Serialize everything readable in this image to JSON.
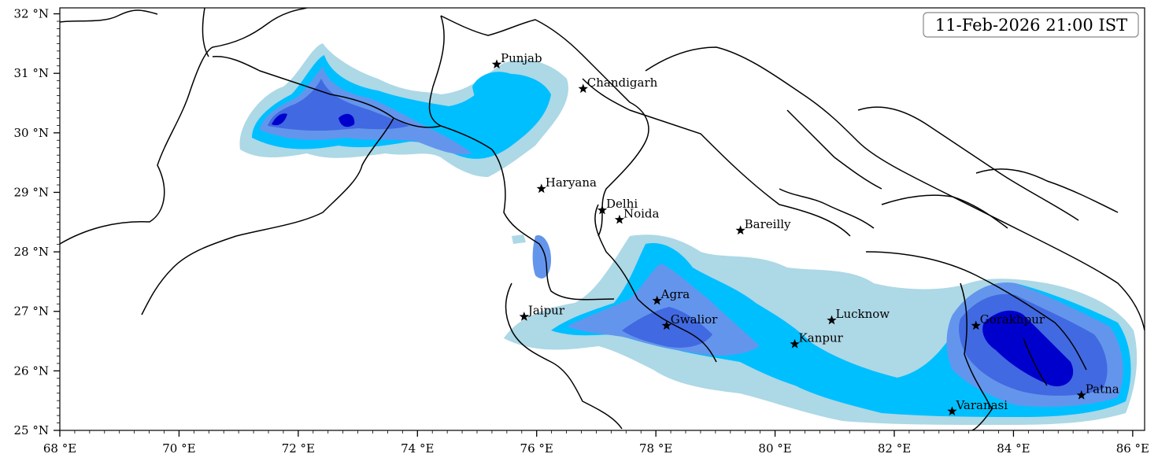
{
  "timestamp": "11-Feb-2026 21:00 IST",
  "map": {
    "lon_range": [
      68,
      86.2
    ],
    "lat_range": [
      25,
      32.1
    ],
    "x_ticks": [
      {
        "value": 68,
        "label": "68 °E"
      },
      {
        "value": 70,
        "label": "70 °E"
      },
      {
        "value": 72,
        "label": "72 °E"
      },
      {
        "value": 74,
        "label": "74 °E"
      },
      {
        "value": 76,
        "label": "76 °E"
      },
      {
        "value": 78,
        "label": "78 °E"
      },
      {
        "value": 80,
        "label": "80 °E"
      },
      {
        "value": 82,
        "label": "82 °E"
      },
      {
        "value": 84,
        "label": "84 °E"
      },
      {
        "value": 86,
        "label": "86 °E"
      }
    ],
    "y_ticks": [
      {
        "value": 25,
        "label": "25 °N"
      },
      {
        "value": 26,
        "label": "26 °N"
      },
      {
        "value": 27,
        "label": "27 °N"
      },
      {
        "value": 28,
        "label": "28 °N"
      },
      {
        "value": 29,
        "label": "29 °N"
      },
      {
        "value": 30,
        "label": "30 °N"
      },
      {
        "value": 31,
        "label": "31 °N"
      },
      {
        "value": 32,
        "label": "32 °N"
      }
    ],
    "fill_colors": [
      "#add8e6",
      "#00bfff",
      "#6495ed",
      "#4169e1",
      "#0000cd"
    ]
  },
  "cities": [
    {
      "name": "Punjab",
      "lon": 75.33,
      "lat": 31.15
    },
    {
      "name": "Chandigarh",
      "lon": 76.78,
      "lat": 30.74
    },
    {
      "name": "Haryana",
      "lon": 76.08,
      "lat": 29.06
    },
    {
      "name": "Delhi",
      "lon": 77.1,
      "lat": 28.7
    },
    {
      "name": "Noida",
      "lon": 77.39,
      "lat": 28.54
    },
    {
      "name": "Bareilly",
      "lon": 79.42,
      "lat": 28.36
    },
    {
      "name": "Agra",
      "lon": 78.02,
      "lat": 27.18
    },
    {
      "name": "Jaipur",
      "lon": 75.79,
      "lat": 26.91
    },
    {
      "name": "Gwalior",
      "lon": 78.18,
      "lat": 26.76
    },
    {
      "name": "Lucknow",
      "lon": 80.95,
      "lat": 26.85
    },
    {
      "name": "Kanpur",
      "lon": 80.33,
      "lat": 26.45
    },
    {
      "name": "Gorakhpur",
      "lon": 83.37,
      "lat": 26.76
    },
    {
      "name": "Varanasi",
      "lon": 82.97,
      "lat": 25.32
    },
    {
      "name": "Patna",
      "lon": 85.14,
      "lat": 25.59
    }
  ]
}
